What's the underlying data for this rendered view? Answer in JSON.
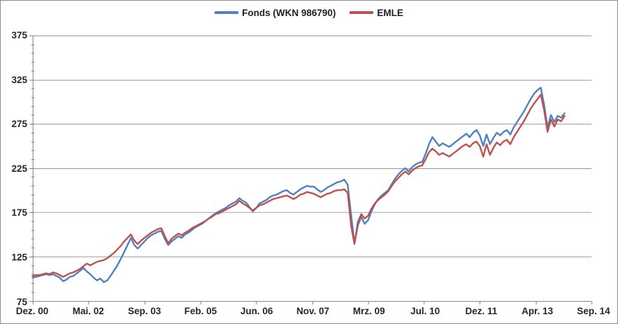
{
  "chart_data": {
    "type": "line",
    "title": "",
    "xlabel": "",
    "ylabel": "",
    "legend_position": "top",
    "grid": "horizontal",
    "ylim": [
      75,
      375
    ],
    "y_ticks": [
      375,
      325,
      275,
      225,
      175,
      125,
      75
    ],
    "y_minor_step": 10,
    "x_total_months": 165,
    "x_tick_labels": [
      "Dez. 00",
      "Mai. 02",
      "Sep. 03",
      "Feb. 05",
      "Jun. 06",
      "Nov. 07",
      "Mrz. 09",
      "Jul. 10",
      "Dez. 11",
      "Apr. 13",
      "Sep. 14"
    ],
    "colors": {
      "blue_series": "#4F81BD",
      "red_series": "#C0504D",
      "gridline": "#969696",
      "axis": "#808080",
      "text": "#262626",
      "border": "#8c8c8c",
      "background": "#ffffff"
    },
    "series": [
      {
        "name": "Fonds (WKN 986790)",
        "color": "#4F81BD",
        "start_month": "2000-12",
        "values": [
          101,
          102,
          103,
          104,
          105,
          104,
          105,
          103,
          101,
          97,
          99,
          102,
          103,
          106,
          109,
          112,
          108,
          105,
          101,
          98,
          100,
          96,
          98,
          103,
          109,
          115,
          122,
          130,
          138,
          146,
          138,
          134,
          138,
          142,
          146,
          149,
          151,
          153,
          154,
          145,
          138,
          142,
          145,
          148,
          146,
          150,
          152,
          155,
          158,
          160,
          162,
          165,
          168,
          171,
          174,
          176,
          178,
          180,
          183,
          185,
          187,
          191,
          188,
          186,
          181,
          176,
          180,
          185,
          187,
          189,
          192,
          194,
          195,
          197,
          199,
          200,
          197,
          195,
          198,
          201,
          203,
          205,
          204,
          204,
          201,
          198,
          200,
          203,
          205,
          207,
          209,
          210,
          212,
          206,
          172,
          140,
          160,
          170,
          162,
          166,
          176,
          184,
          190,
          194,
          197,
          200,
          207,
          213,
          218,
          222,
          225,
          221,
          226,
          229,
          231,
          232,
          241,
          252,
          260,
          255,
          250,
          253,
          251,
          249,
          252,
          255,
          258,
          261,
          264,
          260,
          265,
          268,
          262,
          250,
          263,
          252,
          259,
          265,
          262,
          266,
          268,
          263,
          271,
          277,
          283,
          289,
          296,
          303,
          309,
          313,
          316,
          296,
          271,
          285,
          277,
          284,
          282,
          287
        ]
      },
      {
        "name": "EMLE",
        "color": "#C0504D",
        "start_month": "2000-12",
        "values": [
          103,
          104,
          104,
          105,
          106,
          105,
          107,
          106,
          104,
          102,
          104,
          106,
          107,
          109,
          111,
          114,
          117,
          115,
          117,
          119,
          120,
          121,
          123,
          126,
          129,
          133,
          137,
          142,
          146,
          150,
          143,
          139,
          143,
          146,
          149,
          152,
          154,
          156,
          157,
          148,
          140,
          145,
          148,
          151,
          149,
          152,
          154,
          157,
          159,
          161,
          163,
          165,
          168,
          170,
          173,
          174,
          176,
          178,
          180,
          182,
          184,
          188,
          185,
          183,
          180,
          177,
          180,
          183,
          184,
          186,
          188,
          190,
          191,
          192,
          193,
          194,
          192,
          190,
          192,
          195,
          196,
          198,
          197,
          196,
          194,
          192,
          194,
          196,
          197,
          199,
          200,
          200,
          201,
          197,
          160,
          139,
          164,
          173,
          168,
          171,
          179,
          185,
          189,
          192,
          195,
          199,
          205,
          210,
          214,
          218,
          221,
          218,
          222,
          225,
          227,
          228,
          235,
          243,
          247,
          244,
          240,
          242,
          240,
          238,
          241,
          244,
          247,
          250,
          252,
          249,
          253,
          255,
          250,
          238,
          252,
          240,
          248,
          254,
          251,
          255,
          257,
          252,
          260,
          266,
          272,
          278,
          285,
          292,
          298,
          303,
          308,
          290,
          266,
          280,
          272,
          280,
          278,
          284
        ]
      }
    ]
  }
}
